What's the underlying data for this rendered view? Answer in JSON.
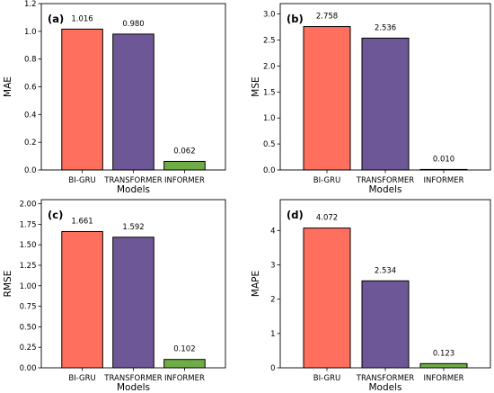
{
  "colors": {
    "BI-GRU": "#ff6f5e",
    "TRANSFORMER": "#6e5796",
    "INFORMER": "#6fac45"
  },
  "chart_data": [
    {
      "type": "bar",
      "panel_label": "(a)",
      "categories": [
        "BI-GRU",
        "TRANSFORMER",
        "INFORMER"
      ],
      "values": [
        1.016,
        0.98,
        0.062
      ],
      "value_labels": [
        "1.016",
        "0.980",
        "0.062"
      ],
      "xlabel": "Models",
      "ylabel": "MAE",
      "ylim": [
        0,
        1.2
      ],
      "yticks": [
        0.0,
        0.2,
        0.4,
        0.6,
        0.8,
        1.0,
        1.2
      ],
      "ytick_labels": [
        "0.0",
        "0.2",
        "0.4",
        "0.6",
        "0.8",
        "1.0",
        "1.2"
      ],
      "grid": false
    },
    {
      "type": "bar",
      "panel_label": "(b)",
      "categories": [
        "BI-GRU",
        "TRANSFORMER",
        "INFORMER"
      ],
      "values": [
        2.758,
        2.536,
        0.01
      ],
      "value_labels": [
        "2.758",
        "2.536",
        "0.010"
      ],
      "xlabel": "Models",
      "ylabel": "MSE",
      "ylim": [
        0,
        3.2
      ],
      "yticks": [
        0.0,
        0.5,
        1.0,
        1.5,
        2.0,
        2.5,
        3.0
      ],
      "ytick_labels": [
        "0.0",
        "0.5",
        "1.0",
        "1.5",
        "2.0",
        "2.5",
        "3.0"
      ],
      "grid": false
    },
    {
      "type": "bar",
      "panel_label": "(c)",
      "categories": [
        "BI-GRU",
        "TRANSFORMER",
        "INFORMER"
      ],
      "values": [
        1.661,
        1.592,
        0.102
      ],
      "value_labels": [
        "1.661",
        "1.592",
        "0.102"
      ],
      "xlabel": "Models",
      "ylabel": "RMSE",
      "ylim": [
        0,
        2.05
      ],
      "yticks": [
        0.0,
        0.25,
        0.5,
        0.75,
        1.0,
        1.25,
        1.5,
        1.75,
        2.0
      ],
      "ytick_labels": [
        "0.00",
        "0.25",
        "0.50",
        "0.75",
        "1.00",
        "1.25",
        "1.50",
        "1.75",
        "2.00"
      ],
      "grid": false
    },
    {
      "type": "bar",
      "panel_label": "(d)",
      "categories": [
        "BI-GRU",
        "TRANSFORMER",
        "INFORMER"
      ],
      "values": [
        4.072,
        2.534,
        0.123
      ],
      "value_labels": [
        "4.072",
        "2.534",
        "0.123"
      ],
      "xlabel": "Models",
      "ylabel": "MAPE",
      "ylim": [
        0,
        4.9
      ],
      "yticks": [
        0,
        1,
        2,
        3,
        4
      ],
      "ytick_labels": [
        "0",
        "1",
        "2",
        "3",
        "4"
      ],
      "grid": false
    }
  ]
}
